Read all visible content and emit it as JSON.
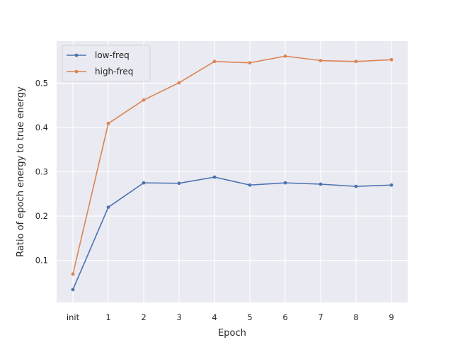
{
  "chart_data": {
    "type": "line",
    "title": "",
    "xlabel": "Epoch",
    "ylabel": "Ratio of epoch energy to true energy",
    "categories": [
      "init",
      "1",
      "2",
      "3",
      "4",
      "5",
      "6",
      "7",
      "8",
      "9"
    ],
    "ylim": [
      0.005,
      0.595
    ],
    "yticks": [
      0.1,
      0.2,
      0.3,
      0.4,
      0.5
    ],
    "ytick_labels": [
      "0.1",
      "0.2",
      "0.3",
      "0.4",
      "0.5"
    ],
    "grid": true,
    "legend_position": "top-left",
    "series": [
      {
        "name": "low-freq",
        "color": "#4c72b0",
        "values": [
          0.034,
          0.22,
          0.275,
          0.274,
          0.288,
          0.27,
          0.275,
          0.272,
          0.267,
          0.27
        ]
      },
      {
        "name": "high-freq",
        "color": "#dd8452",
        "values": [
          0.069,
          0.409,
          0.462,
          0.501,
          0.549,
          0.546,
          0.561,
          0.551,
          0.549,
          0.553
        ]
      }
    ],
    "style": {
      "background": "#eaeaf2",
      "grid_color": "#ffffff"
    }
  }
}
